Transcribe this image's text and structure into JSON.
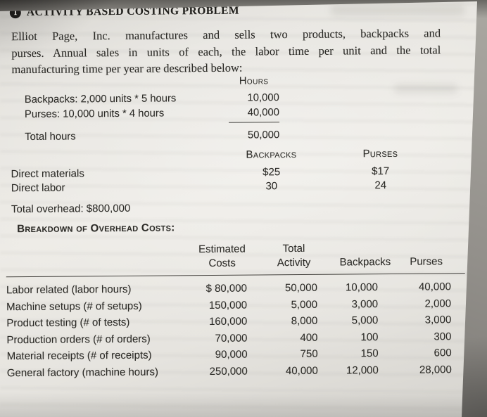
{
  "doc": {
    "badge_number": "1",
    "title": "ACTIVITY BASED COSTING PROBLEM",
    "intro_lines": [
      "Elliot Page, Inc. manufactures and sells two products, backpacks and",
      "purses. Annual sales in units of each, the labor time per unit and the total",
      "manufacturing time per year are described below:"
    ],
    "hours_table": {
      "value_header": "Hours",
      "rows": [
        {
          "label": "Backpacks: 2,000 units * 5 hours",
          "value": "10,000"
        },
        {
          "label": "Purses: 10,000 units * 4 hours",
          "value": "40,000"
        }
      ],
      "total": {
        "label": "Total hours",
        "value": "50,000"
      }
    },
    "unit_cost_table": {
      "headers": {
        "col1": "Backpacks",
        "col2": "Purses"
      },
      "rows": [
        {
          "label": "Direct materials",
          "backpacks": "$25",
          "purses": "$17"
        },
        {
          "label": "Direct labor",
          "backpacks": "30",
          "purses": "24"
        }
      ]
    },
    "total_overhead": "Total overhead: $800,000",
    "breakdown": {
      "title": "Breakdown of Overhead Costs:",
      "headers": {
        "estimated_costs_line1": "Estimated",
        "estimated_costs_line2": "Costs",
        "total_activity_line1": "Total",
        "total_activity_line2": "Activity",
        "backpacks": "Backpacks",
        "purses": "Purses"
      },
      "rows": [
        {
          "label": "Labor related (labor hours)",
          "estimated_costs": "$ 80,000",
          "total_activity": "50,000",
          "backpacks": "10,000",
          "purses": "40,000"
        },
        {
          "label": "Machine setups (# of setups)",
          "estimated_costs": "150,000",
          "total_activity": "5,000",
          "backpacks": "3,000",
          "purses": "2,000"
        },
        {
          "label": "Product testing (# of tests)",
          "estimated_costs": "160,000",
          "total_activity": "8,000",
          "backpacks": "5,000",
          "purses": "3,000"
        },
        {
          "label": "Production orders (# of orders)",
          "estimated_costs": "70,000",
          "total_activity": "400",
          "backpacks": "100",
          "purses": "300"
        },
        {
          "label": "Material receipts (# of receipts)",
          "estimated_costs": "90,000",
          "total_activity": "750",
          "backpacks": "150",
          "purses": "600"
        },
        {
          "label": "General factory (machine hours)",
          "estimated_costs": "250,000",
          "total_activity": "40,000",
          "backpacks": "12,000",
          "purses": "28,000"
        }
      ]
    }
  }
}
